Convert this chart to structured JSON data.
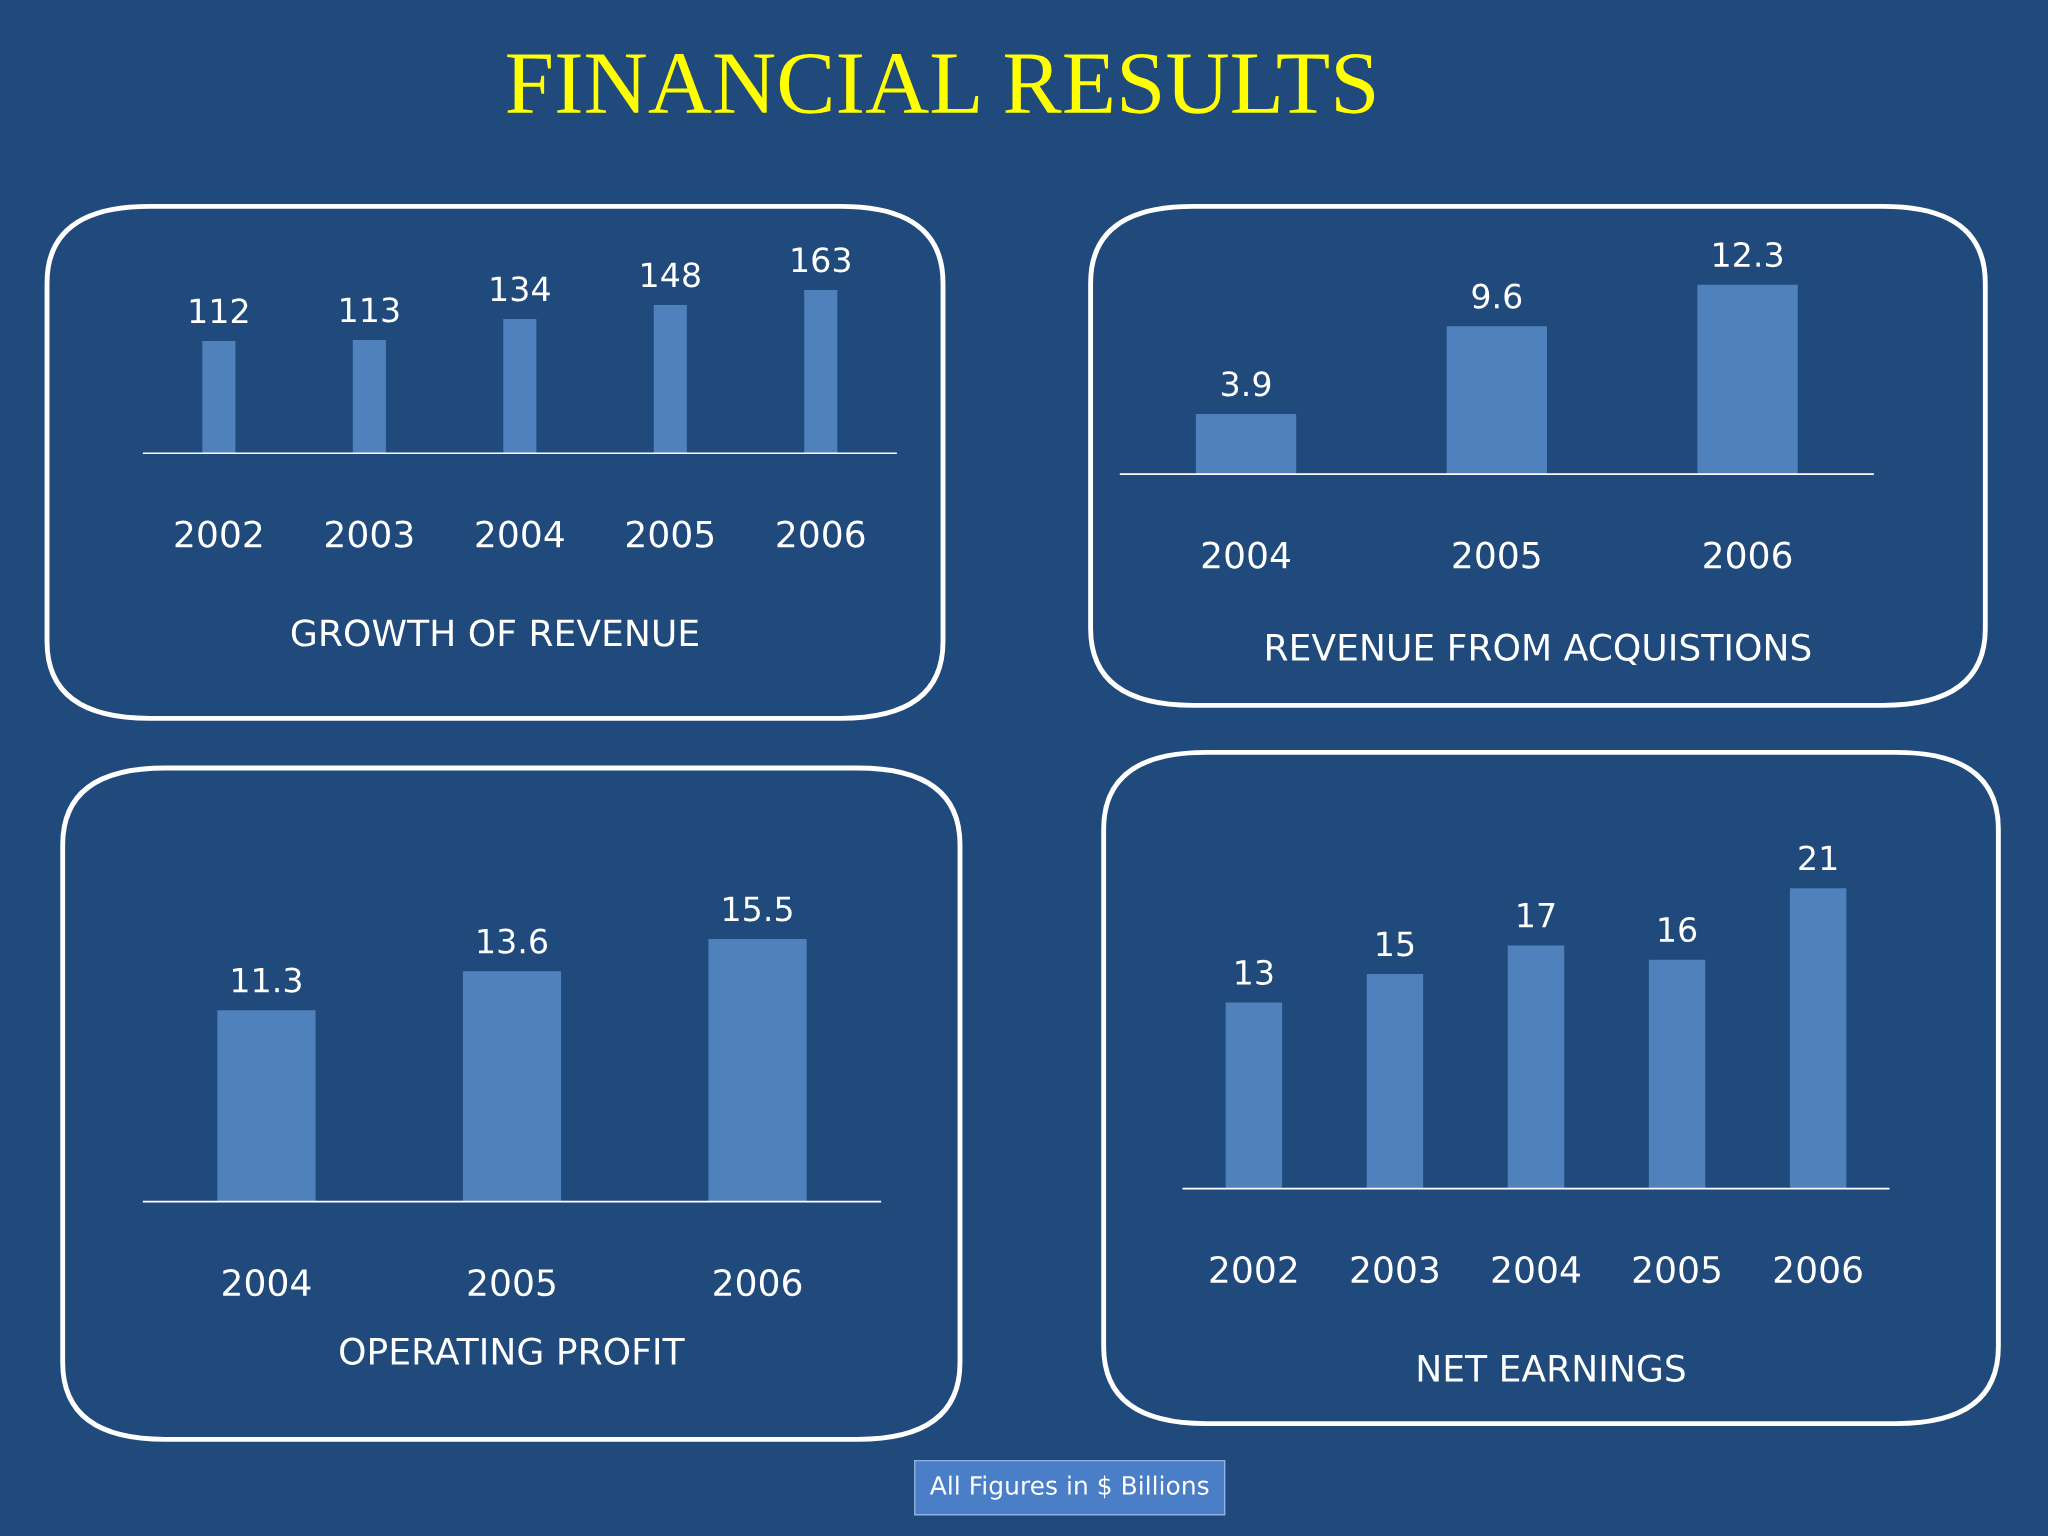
{
  "chart_data": [
    {
      "type": "bar",
      "title": "FINANCIAL RESULTS",
      "xlabel": "GROWTH OF REVENUE",
      "categories": [
        "2002",
        "2003",
        "2004",
        "2005",
        "2006"
      ],
      "values": [
        112,
        113,
        134,
        148,
        163
      ],
      "color": "#4f81bd",
      "data_labels": true,
      "tick_labels": "x"
    },
    {
      "type": "bar",
      "xlabel": "REVENUE FROM ACQUISTIONS",
      "categories": [
        "2004",
        "2005",
        "2006"
      ],
      "values": [
        3.9,
        9.6,
        12.3
      ],
      "color": "#4f81bd",
      "data_labels": true,
      "tick_labels": "x"
    },
    {
      "type": "bar",
      "xlabel": "OPERATING PROFIT",
      "categories": [
        "2004",
        "2005",
        "2006"
      ],
      "values": [
        11.3,
        13.6,
        15.5
      ],
      "color": "#4f81bd",
      "data_labels": true,
      "tick_labels": "x"
    },
    {
      "type": "bar",
      "xlabel": "NET EARNINGS",
      "categories": [
        "2002",
        "2003",
        "2004",
        "2005",
        "2006"
      ],
      "values": [
        13,
        15,
        17,
        16,
        21
      ],
      "color": "#4f81bd",
      "data_labels": true,
      "tick_labels": "x",
      "annotations": [
        "All Figures in $ Billions"
      ]
    }
  ]
}
